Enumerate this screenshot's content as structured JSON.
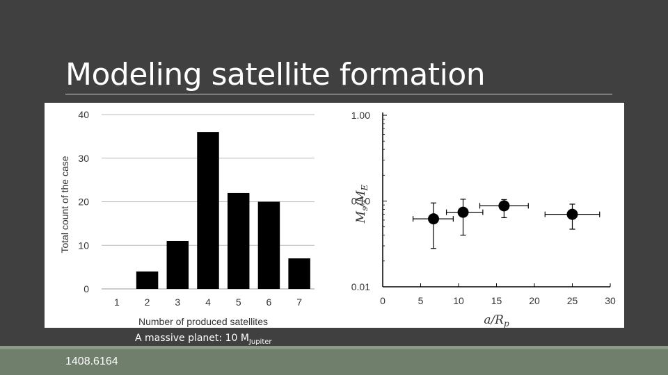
{
  "slide": {
    "title": "Modeling satellite formation",
    "caption_main": "A massive planet: 10 M",
    "caption_sub": "Jupiter",
    "footer": "1408.6164"
  },
  "chart_data": [
    {
      "type": "bar",
      "categories": [
        "1",
        "2",
        "3",
        "4",
        "5",
        "6",
        "7"
      ],
      "values": [
        0,
        4,
        11,
        36,
        22,
        20,
        7
      ],
      "xlabel": "Number of produced satellites",
      "ylabel": "Total count of the case",
      "ylim": [
        0,
        40
      ],
      "yticks": [
        "0",
        "10",
        "20",
        "30",
        "40"
      ],
      "grid": true,
      "bar_color": "#000000"
    },
    {
      "type": "scatter",
      "xlabel": "a/R",
      "xlabel_sub": "p",
      "ylabel": "M",
      "ylabel_sub": "s",
      "ylabel_den": "M",
      "ylabel_den_sub": "E",
      "xlim": [
        0,
        30
      ],
      "ylim": [
        0.01,
        1.0
      ],
      "yscale": "log",
      "xticks": [
        "0",
        "5",
        "10",
        "15",
        "20",
        "25",
        "30"
      ],
      "yticks": [
        "0.01",
        "0.10",
        "1.00"
      ],
      "points": [
        {
          "x": 6.7,
          "y": 0.062,
          "xerr": [
            2.7,
            2.6
          ],
          "yerr_low": 0.028,
          "yerr_high": 0.095
        },
        {
          "x": 10.6,
          "y": 0.074,
          "xerr": [
            2.2,
            2.6
          ],
          "yerr_low": 0.04,
          "yerr_high": 0.105
        },
        {
          "x": 16.0,
          "y": 0.088,
          "xerr": [
            3.2,
            3.2
          ],
          "yerr_low": 0.064,
          "yerr_high": 0.104
        },
        {
          "x": 25.0,
          "y": 0.07,
          "xerr": [
            3.6,
            3.6
          ],
          "yerr_low": 0.047,
          "yerr_high": 0.092
        }
      ]
    }
  ]
}
